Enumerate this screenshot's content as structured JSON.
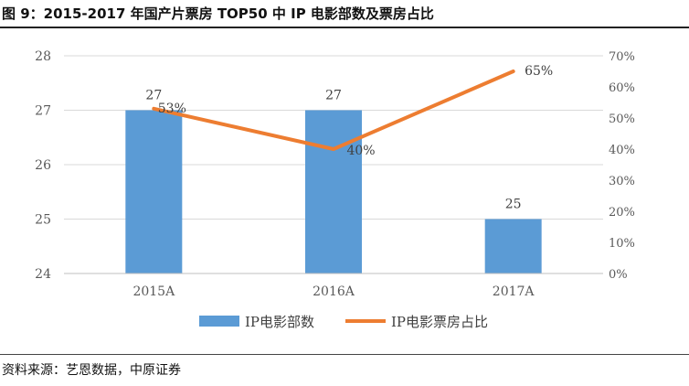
{
  "header": {
    "title": "图 9：2015-2017 年国产片票房 TOP50 中 IP 电影部数及票房占比"
  },
  "footer": {
    "source": "资料来源：艺恩数据，中原证券"
  },
  "chart_data": {
    "type": "bar",
    "title": "图 9：2015-2017 年国产片票房 TOP50 中 IP 电影部数及票房占比",
    "categories": [
      "2015A",
      "2016A",
      "2017A"
    ],
    "series": [
      {
        "name": "IP电影部数",
        "type": "bar",
        "axis": "left",
        "color": "#5B9BD5",
        "values": [
          27,
          27,
          25
        ],
        "labels": [
          "27",
          "27",
          "25"
        ]
      },
      {
        "name": "IP电影票房占比",
        "type": "line",
        "axis": "right",
        "color": "#ED7D31",
        "values": [
          53,
          40,
          65
        ],
        "labels": [
          "53%",
          "40%",
          "65%"
        ]
      }
    ],
    "y_left": {
      "min": 24,
      "max": 28,
      "ticks": [
        "24",
        "25",
        "26",
        "27",
        "28"
      ]
    },
    "y_right": {
      "min": 0,
      "max": 70,
      "ticks": [
        "0%",
        "10%",
        "20%",
        "30%",
        "40%",
        "50%",
        "60%",
        "70%"
      ]
    },
    "grid": true,
    "legend_position": "bottom"
  }
}
